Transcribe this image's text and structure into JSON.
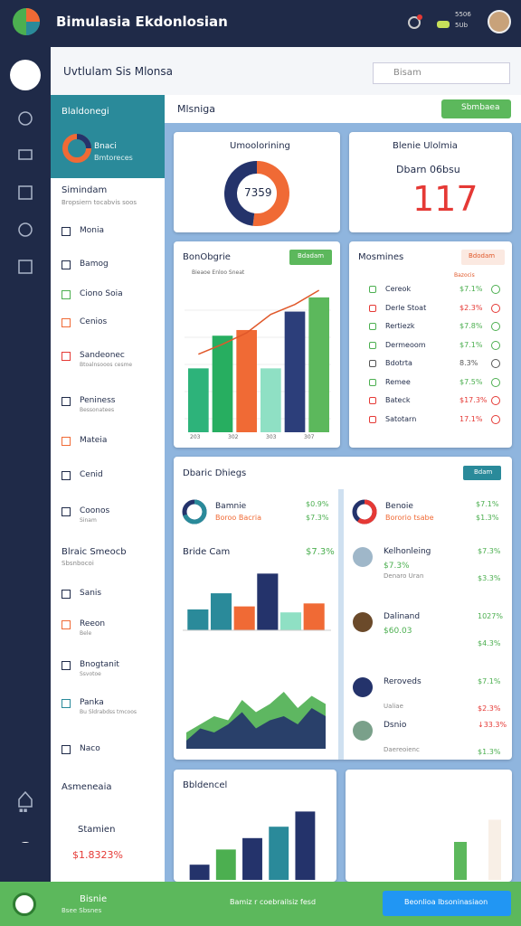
{
  "app": {
    "title": "Bimulasia Ekdonlosian",
    "notif_top": "5506",
    "notif_bot": "5Ub"
  },
  "header": {
    "breadcrumb": "Uvtlulam Sis Mlonsa",
    "search": "Bisam",
    "page_title": "Mlsniga",
    "action": "Sbmbaea"
  },
  "sidebar": {
    "panel_title": "Blaldonegi",
    "panel_line1": "Bnaci",
    "panel_line2": "Bmtoreces",
    "section1": "Simindam",
    "section1_sub": "Bropsiern tocabvis soos",
    "items": [
      {
        "label": "Monia",
        "color": "#1f2a48"
      },
      {
        "label": "Bamog",
        "color": "#1f2a48"
      },
      {
        "label": "Ciono Soia",
        "color": "#4caf50"
      },
      {
        "label": "Cenios",
        "color": "#f06a35"
      },
      {
        "label": "Sandeonec",
        "sub": "Btoalnsooos cesme",
        "color": "#e53935"
      },
      {
        "label": "Peniness",
        "sub": "Bessonatees",
        "color": "#1f2a48"
      },
      {
        "label": "Mateia",
        "color": "#f06a35"
      },
      {
        "label": "Cenid",
        "color": "#1f2a48"
      },
      {
        "label": "Coonos",
        "sub": "Sinam",
        "color": "#1f2a48"
      }
    ],
    "section2": "Blraic Smeocb",
    "section2_sub": "Sbsnbocoi",
    "items2": [
      {
        "label": "Sanis",
        "color": "#1f2a48"
      },
      {
        "label": "Reeon",
        "sub": "Bele",
        "color": "#f06a35"
      },
      {
        "label": "Bnogtanit",
        "sub": "Ssvotoe",
        "color": "#1f2a48"
      },
      {
        "label": "Panka",
        "sub": "Bu Sldrabdss tmcoos",
        "color": "#2a8a9a"
      },
      {
        "label": "Naco",
        "color": "#1f2a48"
      }
    ],
    "footer_title": "Asmeneaia",
    "footer_item": "Stamien",
    "footer_value": "$1.8323%"
  },
  "donut_card": {
    "title": "Umoolorining",
    "center": "7359",
    "segments": [
      {
        "value": 52,
        "color": "#f06a35"
      },
      {
        "value": 48,
        "color": "#24336b"
      }
    ]
  },
  "kpi_card": {
    "title": "Blenie Ulolmia",
    "label": "Dbarn 06bsu",
    "value": "117"
  },
  "bar_card": {
    "title": "BonObgrie",
    "legend": "Bieaoe Enloo Sneat",
    "button": "Bdadam",
    "ylim": [
      0,
      100
    ],
    "bars": [
      {
        "value": 45,
        "color": "#2db37a"
      },
      {
        "value": 68,
        "color": "#27ae60"
      },
      {
        "value": 72,
        "color": "#f06a35"
      },
      {
        "value": 45,
        "color": "#8fe0c4"
      },
      {
        "value": 85,
        "color": "#2c3e7a"
      },
      {
        "value": 95,
        "color": "#5cb85c"
      }
    ],
    "line": {
      "color": "#e0582a",
      "values": [
        55,
        62,
        70,
        83,
        90,
        100
      ]
    },
    "x_labels": [
      "203",
      "302",
      "303",
      "307"
    ]
  },
  "list_card": {
    "title": "Mosmines",
    "button": "Bdodam",
    "header": "Bazocis",
    "rows": [
      {
        "label": "Cereok",
        "value": "$7.1%",
        "color": "#4caf50"
      },
      {
        "label": "Derle Stoat",
        "value": "$2.3%",
        "color": "#e53935"
      },
      {
        "label": "Rertiezk",
        "value": "$7.8%",
        "color": "#4caf50"
      },
      {
        "label": "Dermeoom",
        "value": "$7.1%",
        "color": "#4caf50"
      },
      {
        "label": "Bdotrta",
        "value": "8.3%",
        "color": "#555555"
      },
      {
        "label": "Remee",
        "value": "$7.5%",
        "color": "#4caf50"
      },
      {
        "label": "Bateck",
        "value": "$17.3%",
        "color": "#e53935"
      },
      {
        "label": "Satotarn",
        "value": "17.1%",
        "color": "#e53935"
      }
    ]
  },
  "big_card": {
    "title": "Dbaric Dhiegs",
    "button": "Bdam",
    "donut_rows": [
      {
        "label": "Bamnie",
        "sub": "Boroo Bacria",
        "v1": "$0.9%",
        "v2": "$7.3%",
        "share": 70,
        "color": "#2a8a9a"
      },
      {
        "label": "Benoie",
        "sub": "Bororio tsabe",
        "v1": "$7.1%",
        "v2": "$1.3%",
        "share": 60,
        "color": "#e53935"
      }
    ],
    "chart_title": "Bride Cam",
    "chart_value": "$7.3%",
    "ylim": [
      0,
      100
    ],
    "bars": [
      {
        "value": 35,
        "color": "#2a8a9a"
      },
      {
        "value": 62,
        "color": "#2a8a9a"
      },
      {
        "value": 40,
        "color": "#f06a35"
      },
      {
        "value": 95,
        "color": "#24336b"
      },
      {
        "value": 30,
        "color": "#8fe0c4"
      },
      {
        "value": 45,
        "color": "#f06a35"
      }
    ],
    "area": [
      {
        "color": "#4caf50",
        "values": [
          20,
          30,
          40,
          35,
          60,
          45,
          55,
          70,
          50,
          65,
          55
        ]
      },
      {
        "color": "#24336b",
        "values": [
          10,
          25,
          20,
          30,
          45,
          25,
          35,
          40,
          30,
          50,
          40
        ]
      }
    ],
    "people": [
      {
        "label": "Kelhonleing",
        "value": "$7.3%",
        "sub_value": "$7.3%",
        "sub": "Denaro Uran",
        "sub2": "$3.3%"
      },
      {
        "label": "Dalinand",
        "value": "1027%",
        "sub_value": "$60.03",
        "sub2": "$4.3%"
      },
      {
        "label": "Reroveds",
        "value": "$7.1%",
        "sub": "Ualiae",
        "sub2": "$2.3%"
      },
      {
        "label": "Dsnio",
        "value": "↓33.3%",
        "sub": "Daereoienc",
        "sub2": "$1.3%"
      }
    ]
  },
  "bottom_card": {
    "title": "Bbldencel",
    "ylim": [
      0,
      100
    ],
    "bars": [
      {
        "value": 20,
        "color": "#24336b"
      },
      {
        "value": 40,
        "color": "#4caf50"
      },
      {
        "value": 55,
        "color": "#24336b"
      },
      {
        "value": 70,
        "color": "#2a8a9a"
      },
      {
        "value": 90,
        "color": "#24336b"
      }
    ]
  },
  "side_card": {
    "ylim": [
      0,
      100
    ],
    "bars": [
      {
        "value": 60,
        "color": "#5cb85c"
      },
      {
        "value": 95,
        "color": "#f8efe6"
      }
    ]
  },
  "footer": {
    "title": "Bisnie",
    "sub": "Bsee Sbsnes",
    "center": "Bamiz r coebrailsiz fesd",
    "button": "Beonlioa Ibsoninasiaon"
  }
}
